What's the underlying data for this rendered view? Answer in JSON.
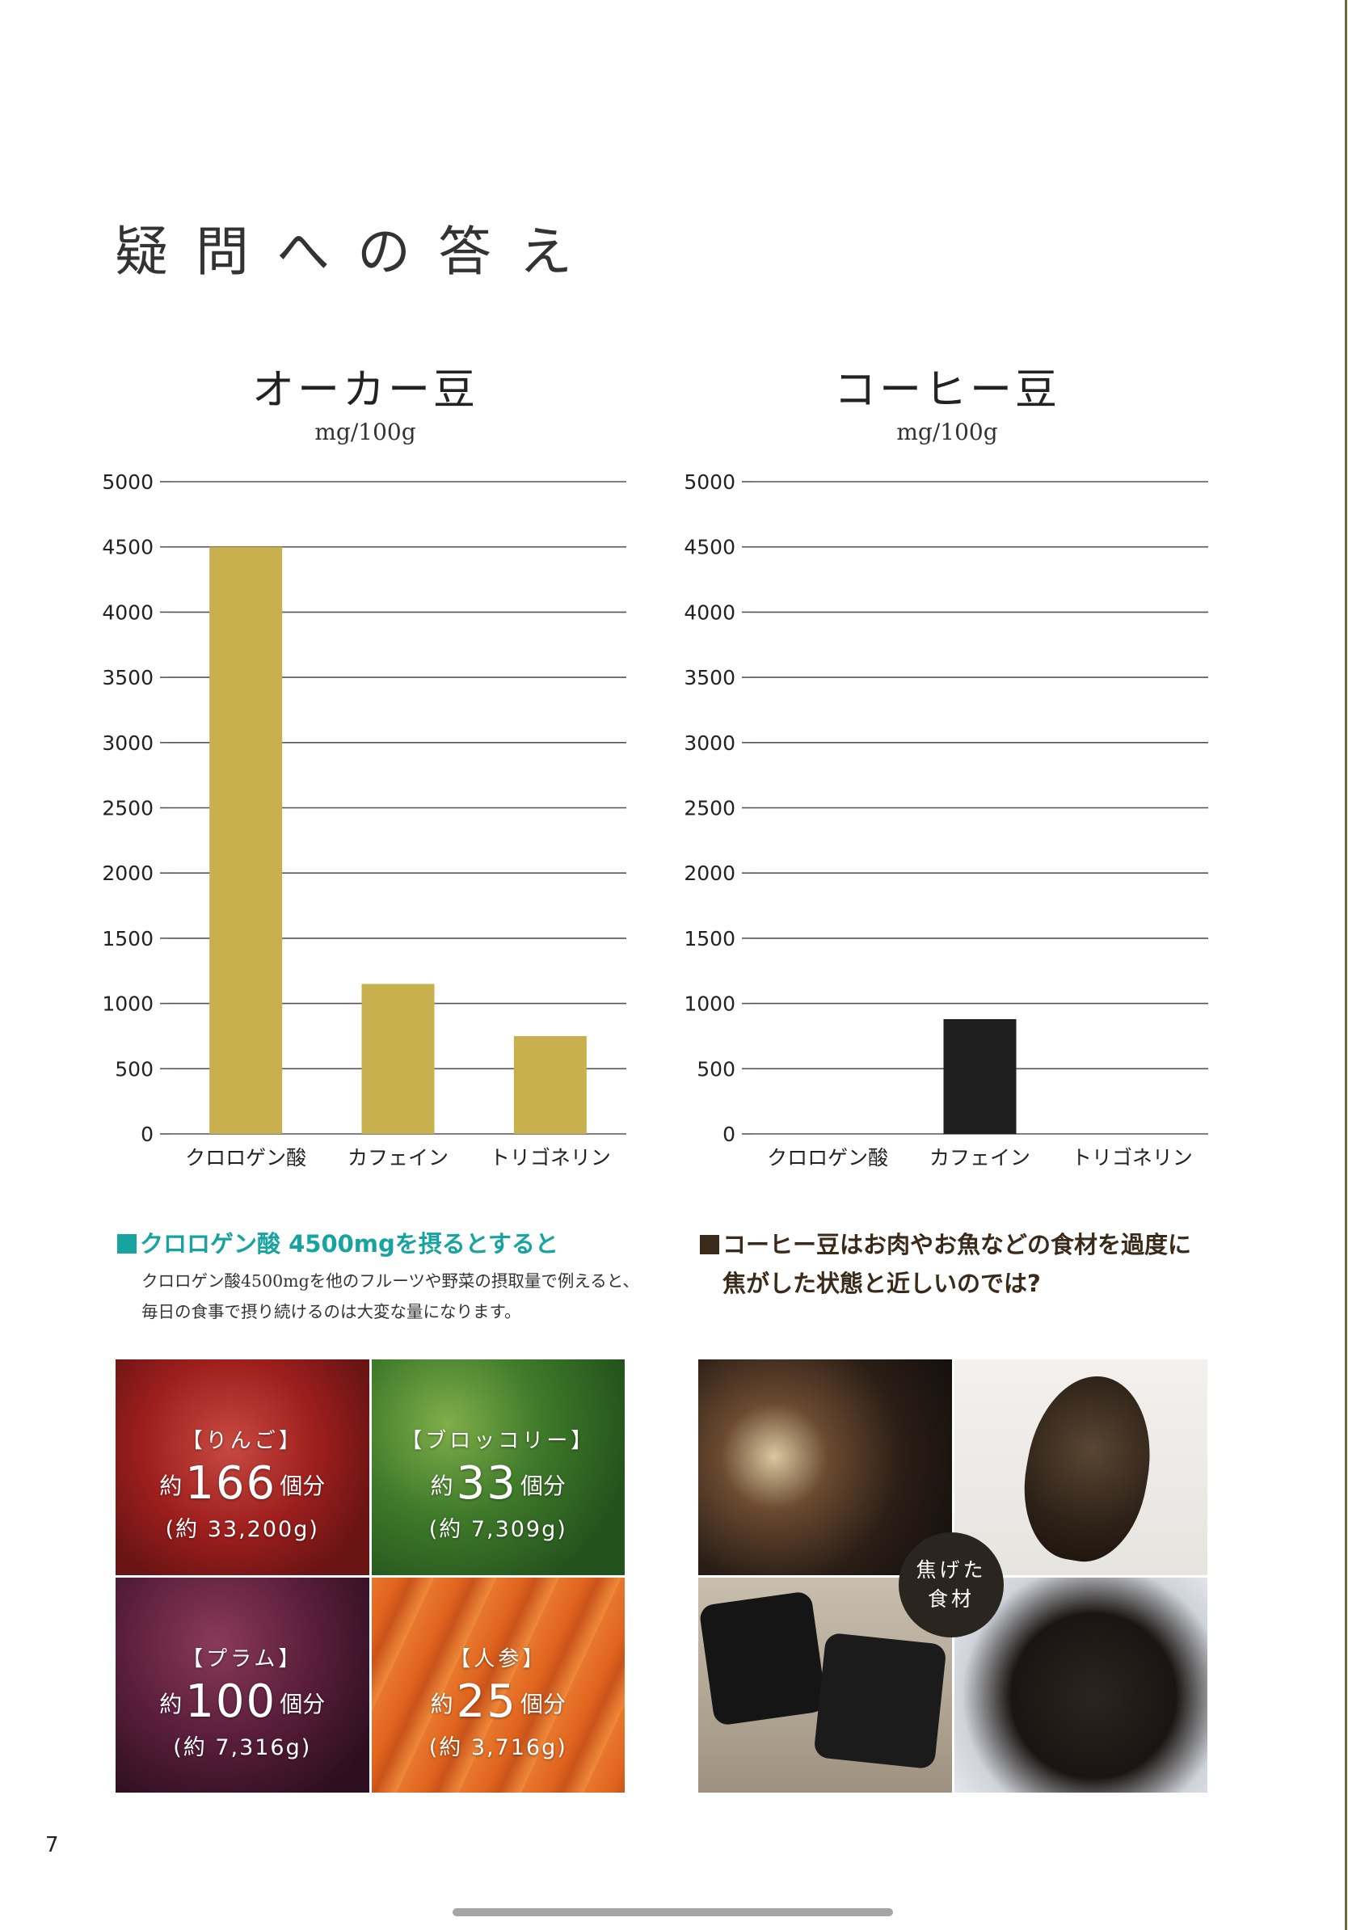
{
  "heading": "疑問への答え",
  "charts": [
    {
      "id": "oka",
      "title": "オーカー豆",
      "unit": "mg/100g",
      "chart_data": {
        "type": "bar",
        "title": "オーカー豆",
        "ylabel": "mg/100g",
        "categories": [
          "クロロゲン酸",
          "カフェイン",
          "トリゴネリン"
        ],
        "values": [
          4500,
          1150,
          750
        ],
        "ylim": [
          0,
          5000
        ],
        "yticks": [
          0,
          500,
          1000,
          1500,
          2000,
          2500,
          3000,
          3500,
          4000,
          4500,
          5000
        ],
        "grid": true,
        "color": "#c9b04e"
      }
    },
    {
      "id": "coffee",
      "title": "コーヒー豆",
      "unit": "mg/100g",
      "chart_data": {
        "type": "bar",
        "title": "コーヒー豆",
        "ylabel": "mg/100g",
        "categories": [
          "クロロゲン酸",
          "カフェイン",
          "トリゴネリン"
        ],
        "values": [
          0,
          880,
          0
        ],
        "ylim": [
          0,
          5000
        ],
        "yticks": [
          0,
          500,
          1000,
          1500,
          2000,
          2500,
          3000,
          3500,
          4000,
          4500,
          5000
        ],
        "grid": true,
        "color": "#1e1e1e"
      }
    }
  ],
  "left_section": {
    "title": "クロロゲン酸 4500mgを摂るとすると",
    "title_color": "#17a3a0",
    "body_lines": [
      "クロロゲン酸4500mgを他のフルーツや野菜の摂取量で例えると、",
      "毎日の食事で摂り続けるのは大変な量になります。"
    ],
    "tiles": [
      {
        "name": "【りんご】",
        "prefix": "約",
        "count": "166",
        "unit": "個分",
        "weight": "(約 33,200g)"
      },
      {
        "name": "【ブロッコリー】",
        "prefix": "約",
        "count": "33",
        "unit": "個分",
        "weight": "(約 7,309g)"
      },
      {
        "name": "【プラム】",
        "prefix": "約",
        "count": "100",
        "unit": "個分",
        "weight": "(約 7,316g)"
      },
      {
        "name": "【人参】",
        "prefix": "約",
        "count": "25",
        "unit": "個分",
        "weight": "(約 3,716g)"
      }
    ]
  },
  "right_section": {
    "line1": "コーヒー豆はお肉やお魚などの食材を過度に",
    "line2": "焦がした状態と近しいのでは?",
    "title_color": "#3a2a1a",
    "badge_line1": "焦げた",
    "badge_line2": "食材"
  },
  "page_number": "7"
}
